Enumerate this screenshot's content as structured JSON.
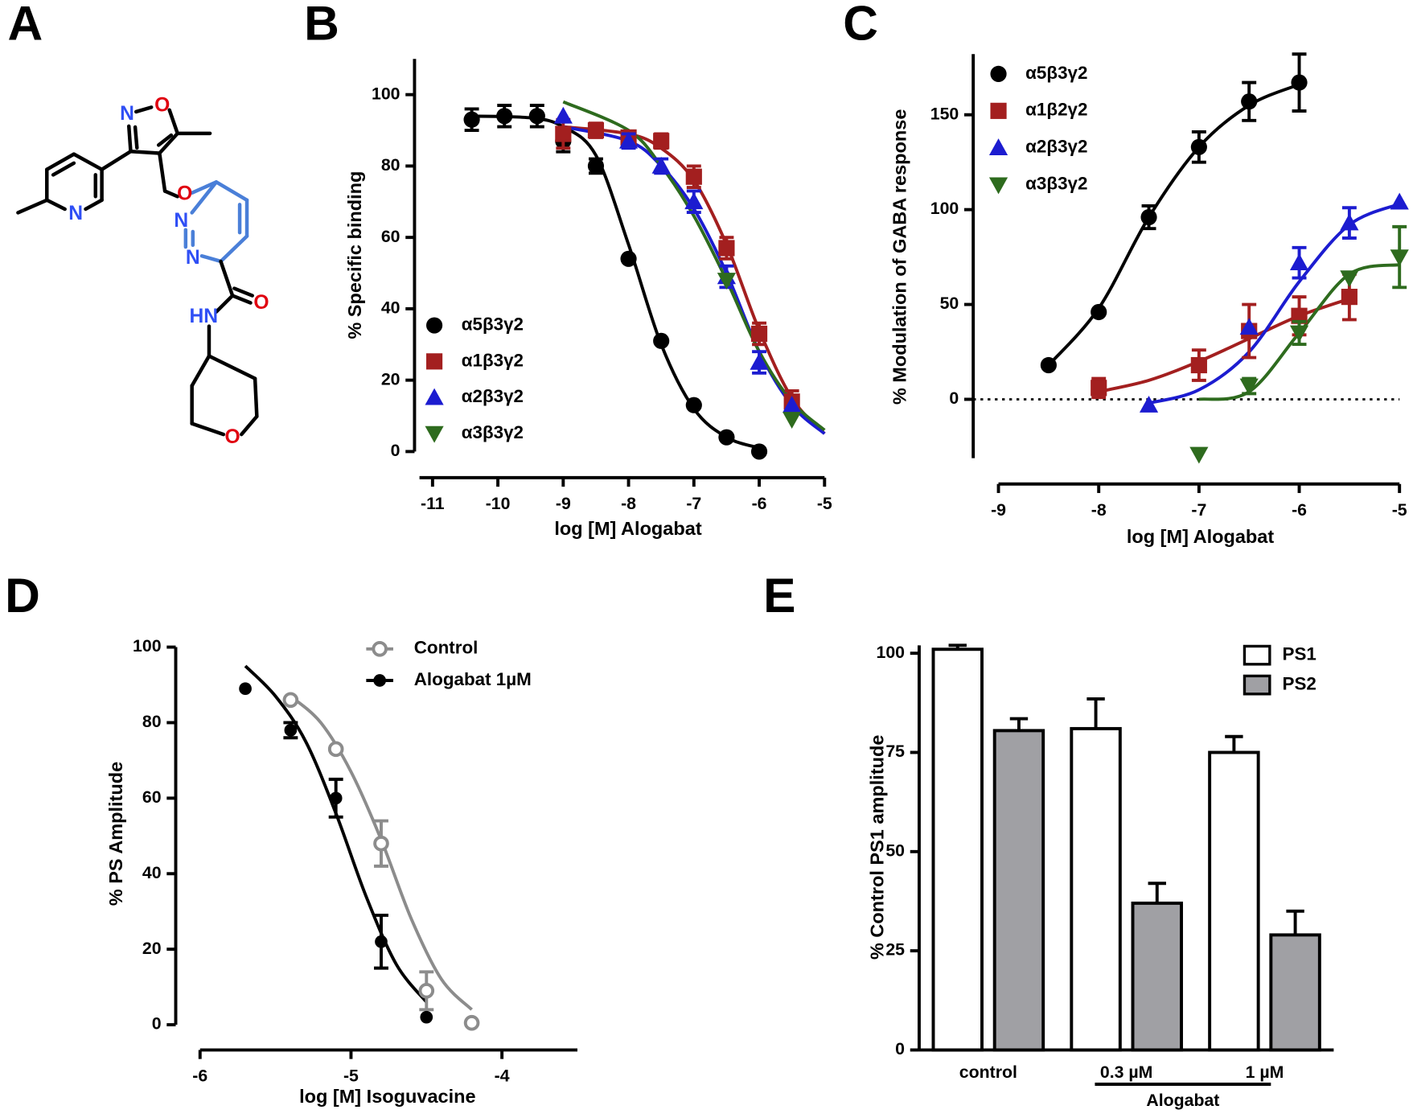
{
  "panels": [
    "A",
    "B",
    "C",
    "D",
    "E"
  ],
  "structure": {
    "atoms": [
      {
        "label": "N",
        "color": "#2f4ff5"
      },
      {
        "label": "O",
        "color": "#e0000f"
      },
      {
        "label": "N",
        "color": "#2f4ff5"
      },
      {
        "label": "O",
        "color": "#e0000f"
      },
      {
        "label": "N",
        "color": "#2f4ff5"
      },
      {
        "label": "N",
        "color": "#2f4ff5"
      },
      {
        "label": "O",
        "color": "#e0000f"
      },
      {
        "label": "HN",
        "color": "#2f4ff5"
      },
      {
        "label": "O",
        "color": "#e0000f"
      }
    ]
  },
  "chart_data": [
    {
      "type": "scatter",
      "xlabel": "log [M] Alogabat",
      "ylabel": "% Specific binding",
      "xlim": [
        -11.2,
        -5
      ],
      "ylim": [
        0,
        110
      ],
      "xticks": [
        -11,
        -10,
        -9,
        -8,
        -7,
        -6,
        -5
      ],
      "yticks": [
        0,
        20,
        40,
        60,
        80,
        100
      ],
      "legend": "lower left",
      "series": [
        {
          "name": "α5β3γ2",
          "color": "#000000",
          "marker": "circle",
          "x": [
            -10.4,
            -9.9,
            -9.4,
            -9,
            -8.5,
            -8,
            -7.5,
            -7,
            -6.5,
            -6
          ],
          "values": [
            93,
            94,
            94,
            87,
            80,
            54,
            31,
            13,
            4,
            0
          ],
          "errors": [
            3,
            3,
            3,
            3,
            2,
            null,
            null,
            null,
            null,
            null
          ],
          "fit": {
            "x": [
              -10.5,
              -9.5,
              -9,
              -8.5,
              -8,
              -7.5,
              -7,
              -6.5,
              -6
            ],
            "values": [
              94,
              93.5,
              91,
              83,
              58,
              30,
              12,
              4,
              1
            ]
          }
        },
        {
          "name": "α1β3γ2",
          "color": "#a31f1f",
          "marker": "square",
          "x": [
            -9,
            -8.5,
            -8,
            -7.5,
            -7,
            -6.5,
            -6,
            -5.5
          ],
          "values": [
            89,
            90,
            88,
            87,
            77,
            57,
            33,
            14
          ],
          "errors": [
            4,
            2,
            null,
            2,
            3,
            3,
            3,
            3
          ],
          "fit": {
            "x": [
              -9,
              -8,
              -7.5,
              -7,
              -6.5,
              -6,
              -5.5,
              -5
            ],
            "values": [
              91,
              89,
              85,
              76,
              58,
              34,
              15,
              5
            ]
          }
        },
        {
          "name": "α2β3γ2",
          "color": "#1c1cd0",
          "marker": "triangle-up",
          "x": [
            -9,
            -8,
            -7.5,
            -7,
            -6.5,
            -6,
            -5.5
          ],
          "values": [
            94,
            87,
            80,
            70,
            49,
            25,
            13
          ],
          "errors": [
            null,
            2,
            2,
            3,
            3,
            3,
            null
          ],
          "fit": {
            "x": [
              -9,
              -8,
              -7.5,
              -7,
              -6.5,
              -6,
              -5.5,
              -5
            ],
            "values": [
              91,
              87,
              80,
              68,
              50,
              28,
              13,
              5
            ]
          }
        },
        {
          "name": "α3β3γ2",
          "color": "#2e6b1e",
          "marker": "triangle-down",
          "x": [
            -6.5,
            -5.5
          ],
          "values": [
            48,
            9
          ],
          "fit": {
            "x": [
              -9,
              -8,
              -7.5,
              -7,
              -6.5,
              -6,
              -5.5,
              -5
            ],
            "values": [
              98,
              90,
              80,
              66,
              48,
              28,
              14,
              6
            ]
          }
        }
      ]
    },
    {
      "type": "scatter",
      "xlabel": "log [M] Alogabat",
      "ylabel": "% Modulation of GABA response",
      "xlim": [
        -9,
        -5
      ],
      "ylim": [
        -31,
        182
      ],
      "xticks": [
        -9,
        -8,
        -7,
        -6,
        -5
      ],
      "yticks": [
        0,
        50,
        100,
        150
      ],
      "hline": 0,
      "legend": "upper left",
      "series": [
        {
          "name": "α5β3γ2",
          "color": "#000000",
          "marker": "circle",
          "x": [
            -8.5,
            -8,
            -7.5,
            -7,
            -6.5,
            -6
          ],
          "values": [
            18,
            46,
            96,
            133,
            157,
            167
          ],
          "errors": [
            null,
            null,
            6,
            8,
            10,
            15
          ],
          "fit": {
            "x": [
              -8.5,
              -8,
              -7.5,
              -7,
              -6.5,
              -6
            ],
            "values": [
              18,
              48,
              96,
              133,
              155,
              166
            ]
          }
        },
        {
          "name": "α1β2γ2",
          "color": "#a31f1f",
          "marker": "square",
          "x": [
            -8,
            -7,
            -6.5,
            -6,
            -5.5
          ],
          "values": [
            6,
            18,
            36,
            44,
            54
          ],
          "errors": [
            5,
            8,
            14,
            10,
            12
          ],
          "fit": {
            "x": [
              -8,
              -7.5,
              -7,
              -6.5,
              -6,
              -5.5
            ],
            "values": [
              4,
              10,
              20,
              32,
              44,
              53
            ]
          }
        },
        {
          "name": "α2β3γ2",
          "color": "#1c1cd0",
          "marker": "triangle-up",
          "x": [
            -7.5,
            -6.5,
            -6,
            -5.5,
            -5
          ],
          "values": [
            -3,
            38,
            72,
            93,
            104
          ],
          "errors": [
            null,
            null,
            8,
            8,
            null
          ],
          "fit": {
            "x": [
              -7.5,
              -7,
              -6.5,
              -6,
              -5.5,
              -5
            ],
            "values": [
              -2,
              5,
              25,
              62,
              92,
              103
            ]
          }
        },
        {
          "name": "α3β3γ2",
          "color": "#2e6b1e",
          "marker": "triangle-down",
          "x": [
            -7,
            -6.5,
            -6,
            -5.5,
            -5
          ],
          "values": [
            -29,
            7,
            35,
            64,
            75
          ],
          "errors": [
            null,
            4,
            6,
            null,
            16
          ],
          "fit": {
            "x": [
              -7,
              -6.5,
              -6,
              -5.5,
              -5
            ],
            "values": [
              0,
              4,
              35,
              66,
              71
            ]
          }
        }
      ]
    },
    {
      "type": "scatter",
      "xlabel": "log [M] Isoguvacine",
      "ylabel": "% PS Amplitude",
      "xlim": [
        -6,
        -3.5
      ],
      "ylim": [
        0,
        100
      ],
      "xticks": [
        -6,
        -5,
        -4
      ],
      "yticks": [
        0,
        20,
        40,
        60,
        80,
        100
      ],
      "legend": "upper center",
      "series": [
        {
          "name": "Control",
          "color": "#8c8c8c",
          "marker": "open-circle",
          "x": [
            -5.4,
            -5.1,
            -4.8,
            -4.5,
            -4.2
          ],
          "values": [
            86,
            73,
            48,
            9,
            0.5
          ],
          "errors": [
            null,
            null,
            6,
            5,
            null
          ],
          "fit": {
            "x": [
              -5.4,
              -5.2,
              -5,
              -4.8,
              -4.6,
              -4.4,
              -4.2
            ],
            "values": [
              87,
              80,
              67,
              49,
              28,
              12,
              4
            ]
          }
        },
        {
          "name": "Alogabat 1µM",
          "color": "#000000",
          "marker": "circle",
          "x": [
            -5.7,
            -5.4,
            -5.1,
            -4.8,
            -4.5
          ],
          "values": [
            89,
            78,
            60,
            22,
            2
          ],
          "errors": [
            null,
            2,
            5,
            7,
            null
          ],
          "fit": {
            "x": [
              -5.7,
              -5.5,
              -5.3,
              -5.1,
              -4.9,
              -4.7,
              -4.5
            ],
            "values": [
              95,
              87,
              75,
              56,
              34,
              16,
              6
            ]
          }
        }
      ]
    },
    {
      "type": "bar",
      "ylabel": "% Control PS1 amplitude",
      "categories": [
        "control",
        "0.3 µM",
        "1 µM"
      ],
      "group_label": "Alogabat",
      "ylim": [
        0,
        102
      ],
      "yticks": [
        0,
        25,
        50,
        75,
        100
      ],
      "legend": "upper right",
      "series": [
        {
          "name": "PS1",
          "color": "#ffffff",
          "values": [
            101,
            81,
            75
          ],
          "errors": [
            1,
            7.5,
            4
          ]
        },
        {
          "name": "PS2",
          "color": "#a0a0a4",
          "values": [
            80.5,
            37,
            29
          ],
          "errors": [
            3,
            5,
            6
          ]
        }
      ]
    }
  ]
}
